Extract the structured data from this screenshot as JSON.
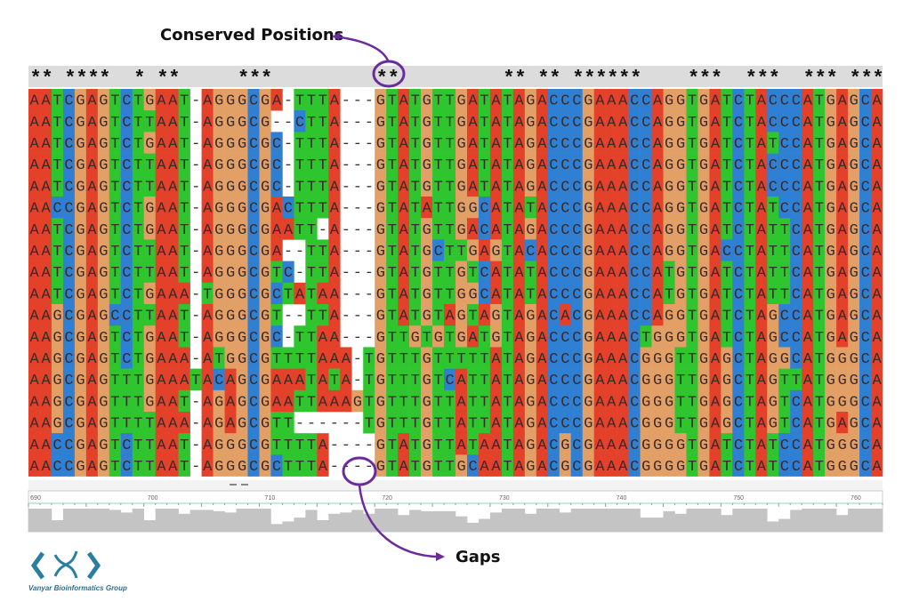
{
  "annotations": {
    "conserved": "Conserved Positions",
    "gaps": "Gaps"
  },
  "conservation": "** ****  * **     ***         **         ** ** ******    ***  ***  *** ***",
  "alignment": {
    "rows": [
      "AATCGAGTCTGAAT-AGGGCGA-TTTA---GTATGTTGATATAGACCCGAAACCAGGTGATCTACCCATGAGCA",
      "AATCGAGTCTTAAT-AGGGCG--CTTA---GTATGTTGATATAGACCCGAAACCAGGTGATCTACCCATGAGCA",
      "AATCGAGTCTGAAT-AGGGCGC-TTTA---GTATGTTGATATAGACCCGAAACCAGGTGATCTATCCATGAGCA",
      "AATCGAGTCTTAAT-AGGGCGC-TTTA---GTATGTTGATATAGACCCGAAACCAGGTGATCTACCCATGAGCA",
      "AATCGAGTCTTAAT-AGGGCGC-TTTA---GTATGTTGATATAGACCCGAAACCAGGTGATCTACCCATGAGCA",
      "AACCGAGTCTGAAT-AGGGCGACTTTA---GTATATTGGCATATACCCGAAACCAGGTGATCTATCCATGAGCA",
      "AATCGAGTCTGAAT-AGGGCGAATT-A---GTATGTTGACATAGACCCGAAACCAGGTGATCTATTCATGAGCA",
      "AATCGAGTCTTAAT-AGGGCGA--TTA---GTATGCTTGAGTACACCCGAAACCAGGTGACCTATTCATGAGCA",
      "AATCGAGTCTTAAT-AGGGCGTC-TTA---GTATGTTGTCATATACCCGAAACCATGTGATCTATTCATGAGCA",
      "AATCGAGTCTGAAA-TGGGCGCTATAA---GTATGTTGGCATATACCCGAAACCATGTGATCTATTCATGAGCA",
      "AAGCGAGCCTTAAT-AGGGCGT--TTA---GTATGTAGTAGTAGACACGAAACCAGGTGATCTAGCCATGAGCA",
      "AAGCGAGTCTGAAT-AGGGCGC-TTAA---GTTGTGTGATGTAGACCCGAAACTGGGTGATCTAGCCATGAGCA",
      "AAGCGAGTCTGAAA-ATGGCGTTTTAAA-TGTTTGTTTTTATAGACCCGAAACGGGTTGAGCTAGGCATGGGCA",
      "AAGCGAGTTTGAAATACAGCGAAATATA-TGTTTGTCATTATAGACCCGAAACGGGTTGAGCTAGTTATGGGCA",
      "AAGCGAGTTTGAAT-AGAGCGAATTAAAGTGTTTGTTATTATAGACCCGAAACGGGTTGAGCTAGTCATGGGCA",
      "AAGCGAGTTTTAAA-AGAGCGTT------TGTTTGTTATTATAGACCCGAAACGGGTTGAGCTAGTCATGAGCA",
      "AACCGAGTCTTAAT-AGGGCGTTTTA----GTATGTTATAATAGACGCGAAACGGGGTGATCTATCCATGGGCA",
      "AACCGAGTCTTAAT-AGGGCGCTTTA----GTATGTTGCAATAGACGCGAAACGGGGTGATCTATCCATGGGCA"
    ]
  },
  "ruler": {
    "labels": [
      690,
      700,
      710,
      720,
      730,
      740,
      750,
      760
    ]
  },
  "logo": {
    "text": "Vanyar Bioinformatics Group"
  }
}
